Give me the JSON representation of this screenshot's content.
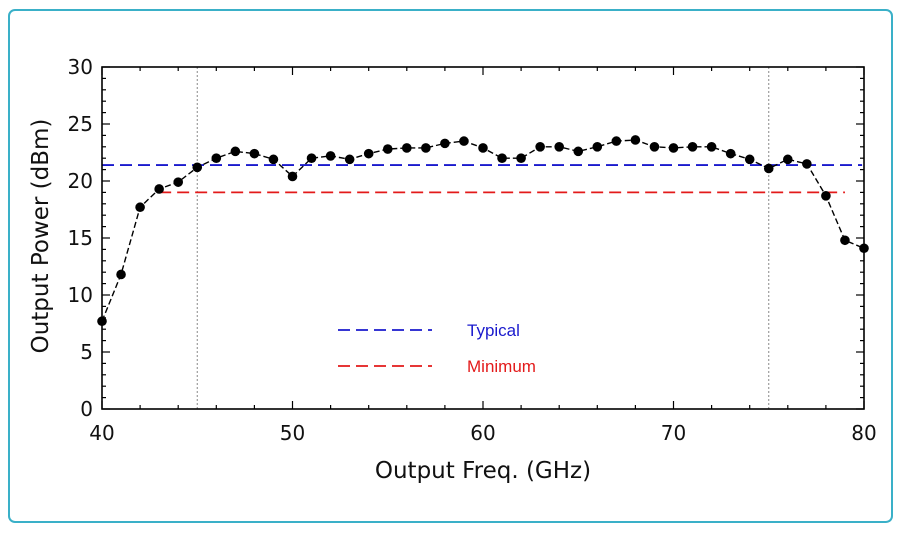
{
  "chart_data": {
    "type": "line",
    "xlabel": "Output Freq. (GHz)",
    "ylabel": "Output Power (dBm)",
    "xlim": [
      40,
      80
    ],
    "ylim": [
      0,
      30
    ],
    "xticks": [
      "40",
      "50",
      "60",
      "70",
      "80"
    ],
    "yticks": [
      "0",
      "5",
      "10",
      "15",
      "20",
      "25",
      "30"
    ],
    "grid": false,
    "vertical_reference_lines_x": [
      45,
      75
    ],
    "measured": {
      "color": "#000000",
      "x": [
        40,
        41,
        42,
        43,
        44,
        45,
        46,
        47,
        48,
        49,
        50,
        51,
        52,
        53,
        54,
        55,
        56,
        57,
        58,
        59,
        60,
        61,
        62,
        63,
        64,
        65,
        66,
        67,
        68,
        69,
        70,
        71,
        72,
        73,
        74,
        75,
        76,
        77,
        78,
        79,
        80
      ],
      "y": [
        7.7,
        11.8,
        17.7,
        19.3,
        19.9,
        21.2,
        22.0,
        22.6,
        22.4,
        21.9,
        20.4,
        22.0,
        22.2,
        21.9,
        22.4,
        22.8,
        22.9,
        22.9,
        23.3,
        23.5,
        22.9,
        22.0,
        22.0,
        23.0,
        23.0,
        22.6,
        23.0,
        23.5,
        23.6,
        23.0,
        22.9,
        23.0,
        23.0,
        22.4,
        21.9,
        21.1,
        21.9,
        21.5,
        18.7,
        14.8,
        14.1
      ]
    },
    "reference_lines": [
      {
        "name": "Typical",
        "y": 21.4,
        "x_range": [
          40,
          79.9
        ],
        "color": "#1a1acd"
      },
      {
        "name": "Minimum",
        "y": 19.0,
        "x_range": [
          43,
          79
        ],
        "color": "#e31a1a"
      }
    ]
  }
}
